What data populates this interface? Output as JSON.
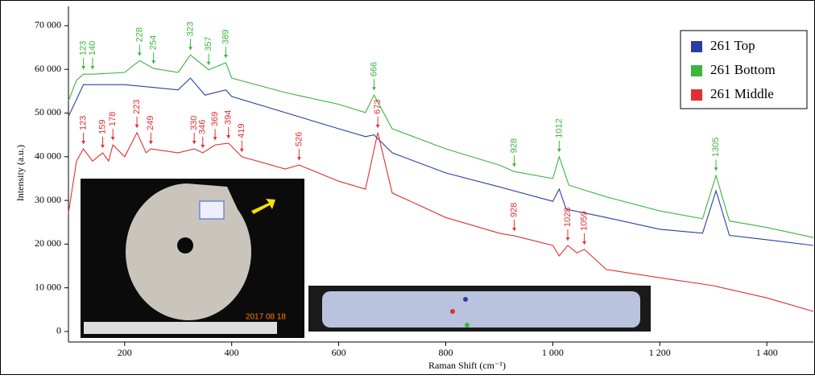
{
  "chart_data": {
    "type": "line",
    "xlabel": "Raman Shift (cm⁻¹)",
    "ylabel": "Intensity (a.u.)",
    "xlim": [
      95,
      1487
    ],
    "ylim": [
      -2400,
      74400
    ],
    "xticks": [
      200,
      400,
      600,
      800,
      {
        "value": 1000,
        "label": "1 000"
      },
      {
        "value": 1200,
        "label": "1 200"
      },
      {
        "value": 1400,
        "label": "1 400"
      }
    ],
    "yticks": [
      0,
      {
        "value": 10000,
        "label": "10 000"
      },
      {
        "value": 20000,
        "label": "20 000"
      },
      {
        "value": 30000,
        "label": "30 000"
      },
      {
        "value": 40000,
        "label": "40 000"
      },
      {
        "value": 50000,
        "label": "50 000"
      },
      {
        "value": 60000,
        "label": "60 000"
      },
      {
        "value": 70000,
        "label": "70 000"
      }
    ],
    "legend": "upper right",
    "photo_date": "2017 08 18",
    "series": [
      {
        "name": "261 Top",
        "color": "#2b3ea0",
        "x": [
          95,
          123,
          200,
          300,
          323,
          350,
          389,
          400,
          500,
          600,
          650,
          666,
          700,
          800,
          900,
          1000,
          1012,
          1025,
          1100,
          1200,
          1280,
          1305,
          1330,
          1400,
          1487
        ],
        "values": [
          49200,
          56500,
          56500,
          55300,
          58000,
          54100,
          55300,
          53800,
          50100,
          46400,
          44600,
          45000,
          40900,
          36300,
          33100,
          29800,
          32600,
          28000,
          26100,
          23400,
          22500,
          32200,
          22000,
          21000,
          19700
        ]
      },
      {
        "name": "261 Bottom",
        "color": "#3cb53c",
        "x": [
          95,
          110,
          123,
          140,
          200,
          228,
          254,
          300,
          323,
          357,
          389,
          400,
          500,
          600,
          650,
          666,
          700,
          800,
          900,
          928,
          1000,
          1012,
          1030,
          1100,
          1200,
          1280,
          1305,
          1330,
          1400,
          1487
        ],
        "values": [
          52800,
          57500,
          58900,
          58900,
          59300,
          62000,
          60200,
          59300,
          63300,
          59900,
          61500,
          58000,
          54700,
          52000,
          50100,
          54100,
          46400,
          41800,
          38100,
          36600,
          35000,
          40000,
          33500,
          30800,
          27600,
          25800,
          35700,
          25300,
          23800,
          21500
        ]
      },
      {
        "name": "261 Middle",
        "color": "#e03030",
        "x": [
          95,
          110,
          123,
          140,
          159,
          170,
          178,
          200,
          223,
          240,
          249,
          300,
          330,
          346,
          369,
          394,
          419,
          500,
          526,
          600,
          650,
          673,
          700,
          800,
          900,
          928,
          1000,
          1012,
          1028,
          1045,
          1059,
          1100,
          1200,
          1300,
          1400,
          1487
        ],
        "values": [
          27100,
          39000,
          41800,
          39000,
          40900,
          39000,
          42700,
          40000,
          45500,
          40900,
          41800,
          40900,
          41800,
          40900,
          42700,
          43100,
          40000,
          37200,
          38100,
          34400,
          32600,
          45500,
          31700,
          26100,
          22500,
          21900,
          19700,
          17300,
          19700,
          18000,
          18800,
          14200,
          12300,
          10500,
          7700,
          4600
        ]
      }
    ],
    "peaks": [
      {
        "series": 1,
        "positions": [
          123,
          140,
          228,
          254,
          323,
          357,
          389,
          666,
          928,
          1012,
          1305
        ]
      },
      {
        "series": 2,
        "positions": [
          123,
          159,
          178,
          223,
          249,
          330,
          346,
          369,
          394,
          419,
          526,
          673,
          928,
          1028,
          1059
        ]
      }
    ]
  }
}
